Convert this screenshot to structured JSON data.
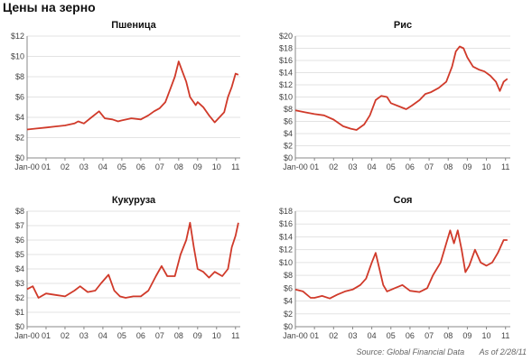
{
  "page": {
    "title": "Цены на зерно"
  },
  "footer": {
    "source": "Source:  Global Financial Data",
    "as_of": "As of 2/28/11"
  },
  "chart_data": [
    {
      "type": "line",
      "title": "Пшеница",
      "x_categories": [
        "Jan-00",
        "01",
        "02",
        "03",
        "04",
        "05",
        "06",
        "07",
        "08",
        "09",
        "10",
        "11"
      ],
      "y_ticks": [
        "$0",
        "$2",
        "$4",
        "$6",
        "$8",
        "$10",
        "$12"
      ],
      "ylim": [
        0,
        12
      ],
      "xlim": [
        2000,
        2011.25
      ],
      "grid": true,
      "series": [
        {
          "color": "#d03a2a",
          "x": [
            2000.0,
            2000.5,
            2001.0,
            2001.5,
            2002.0,
            2002.5,
            2002.7,
            2003.0,
            2003.4,
            2003.8,
            2004.1,
            2004.5,
            2004.8,
            2005.0,
            2005.5,
            2006.0,
            2006.4,
            2006.7,
            2007.0,
            2007.3,
            2007.6,
            2007.8,
            2008.0,
            2008.2,
            2008.4,
            2008.6,
            2008.9,
            2009.0,
            2009.3,
            2009.6,
            2009.9,
            2010.1,
            2010.4,
            2010.6,
            2010.8,
            2011.0,
            2011.15
          ],
          "y": [
            2.8,
            2.9,
            3.0,
            3.1,
            3.2,
            3.4,
            3.6,
            3.4,
            4.0,
            4.6,
            3.9,
            3.8,
            3.6,
            3.7,
            3.9,
            3.8,
            4.2,
            4.6,
            4.9,
            5.5,
            7.0,
            8.0,
            9.5,
            8.5,
            7.5,
            6.0,
            5.2,
            5.5,
            5.0,
            4.2,
            3.5,
            3.9,
            4.5,
            6.0,
            7.0,
            8.3,
            8.2
          ]
        }
      ]
    },
    {
      "type": "line",
      "title": "Рис",
      "x_categories": [
        "Jan-00",
        "01",
        "02",
        "03",
        "04",
        "05",
        "06",
        "07",
        "08",
        "09",
        "10",
        "11"
      ],
      "y_ticks": [
        "$0",
        "$2",
        "$4",
        "$6",
        "$8",
        "$10",
        "$12",
        "$14",
        "$16",
        "$18",
        "$20"
      ],
      "ylim": [
        0,
        20
      ],
      "xlim": [
        2000,
        2011.25
      ],
      "grid": true,
      "series": [
        {
          "color": "#d03a2a",
          "x": [
            2000.0,
            2000.5,
            2001.0,
            2001.5,
            2002.0,
            2002.5,
            2002.9,
            2003.2,
            2003.6,
            2003.9,
            2004.2,
            2004.5,
            2004.8,
            2005.0,
            2005.4,
            2005.8,
            2006.1,
            2006.5,
            2006.8,
            2007.1,
            2007.5,
            2007.9,
            2008.2,
            2008.4,
            2008.6,
            2008.8,
            2009.0,
            2009.3,
            2009.6,
            2009.9,
            2010.2,
            2010.5,
            2010.7,
            2010.9,
            2011.1
          ],
          "y": [
            7.8,
            7.5,
            7.2,
            7.0,
            6.3,
            5.2,
            4.8,
            4.6,
            5.5,
            7.0,
            9.5,
            10.2,
            10.0,
            9.0,
            8.5,
            8.0,
            8.6,
            9.5,
            10.5,
            10.8,
            11.5,
            12.5,
            15.0,
            17.5,
            18.3,
            18.0,
            16.5,
            15.0,
            14.5,
            14.2,
            13.5,
            12.5,
            11.0,
            12.5,
            13.0
          ]
        }
      ]
    },
    {
      "type": "line",
      "title": "Кукуруза",
      "x_categories": [
        "Jan-00",
        "01",
        "02",
        "03",
        "04",
        "05",
        "06",
        "07",
        "08",
        "09",
        "10",
        "11"
      ],
      "y_ticks": [
        "$0",
        "$1",
        "$2",
        "$3",
        "$4",
        "$5",
        "$6",
        "$7",
        "$8"
      ],
      "ylim": [
        0,
        8
      ],
      "xlim": [
        2000,
        2011.25
      ],
      "grid": true,
      "series": [
        {
          "color": "#d03a2a",
          "x": [
            2000.0,
            2000.3,
            2000.6,
            2001.0,
            2001.5,
            2002.0,
            2002.5,
            2002.8,
            2003.2,
            2003.6,
            2003.9,
            2004.3,
            2004.6,
            2004.9,
            2005.2,
            2005.6,
            2006.0,
            2006.4,
            2006.8,
            2007.1,
            2007.4,
            2007.8,
            2008.1,
            2008.4,
            2008.6,
            2008.8,
            2009.0,
            2009.3,
            2009.6,
            2009.9,
            2010.3,
            2010.6,
            2010.8,
            2011.0,
            2011.15
          ],
          "y": [
            2.6,
            2.8,
            2.0,
            2.3,
            2.2,
            2.1,
            2.5,
            2.8,
            2.4,
            2.5,
            3.0,
            3.6,
            2.5,
            2.1,
            2.0,
            2.1,
            2.1,
            2.5,
            3.5,
            4.2,
            3.5,
            3.5,
            5.0,
            6.0,
            7.2,
            5.5,
            4.0,
            3.8,
            3.4,
            3.8,
            3.5,
            4.0,
            5.5,
            6.3,
            7.2
          ]
        }
      ]
    },
    {
      "type": "line",
      "title": "Соя",
      "x_categories": [
        "Jan-00",
        "01",
        "02",
        "03",
        "04",
        "05",
        "06",
        "07",
        "08",
        "09",
        "10",
        "11"
      ],
      "y_ticks": [
        "$0",
        "$2",
        "$4",
        "$6",
        "$8",
        "$10",
        "$12",
        "$14",
        "$16",
        "$18"
      ],
      "ylim": [
        0,
        18
      ],
      "xlim": [
        2000,
        2011.25
      ],
      "grid": true,
      "series": [
        {
          "color": "#d03a2a",
          "x": [
            2000.0,
            2000.4,
            2000.8,
            2001.0,
            2001.4,
            2001.8,
            2002.2,
            2002.6,
            2003.0,
            2003.4,
            2003.7,
            2004.0,
            2004.2,
            2004.4,
            2004.6,
            2004.8,
            2005.2,
            2005.6,
            2006.0,
            2006.5,
            2006.9,
            2007.2,
            2007.6,
            2007.9,
            2008.1,
            2008.3,
            2008.5,
            2008.7,
            2008.9,
            2009.1,
            2009.4,
            2009.7,
            2010.0,
            2010.3,
            2010.6,
            2010.9,
            2011.1
          ],
          "y": [
            5.8,
            5.5,
            4.5,
            4.5,
            4.8,
            4.4,
            5.0,
            5.5,
            5.8,
            6.5,
            7.5,
            10.0,
            11.5,
            9.0,
            6.5,
            5.5,
            6.0,
            6.5,
            5.6,
            5.4,
            6.0,
            8.0,
            10.0,
            13.0,
            15.0,
            13.0,
            15.0,
            12.0,
            8.5,
            9.5,
            12.0,
            10.0,
            9.5,
            10.0,
            11.5,
            13.5,
            13.5
          ]
        }
      ]
    }
  ]
}
